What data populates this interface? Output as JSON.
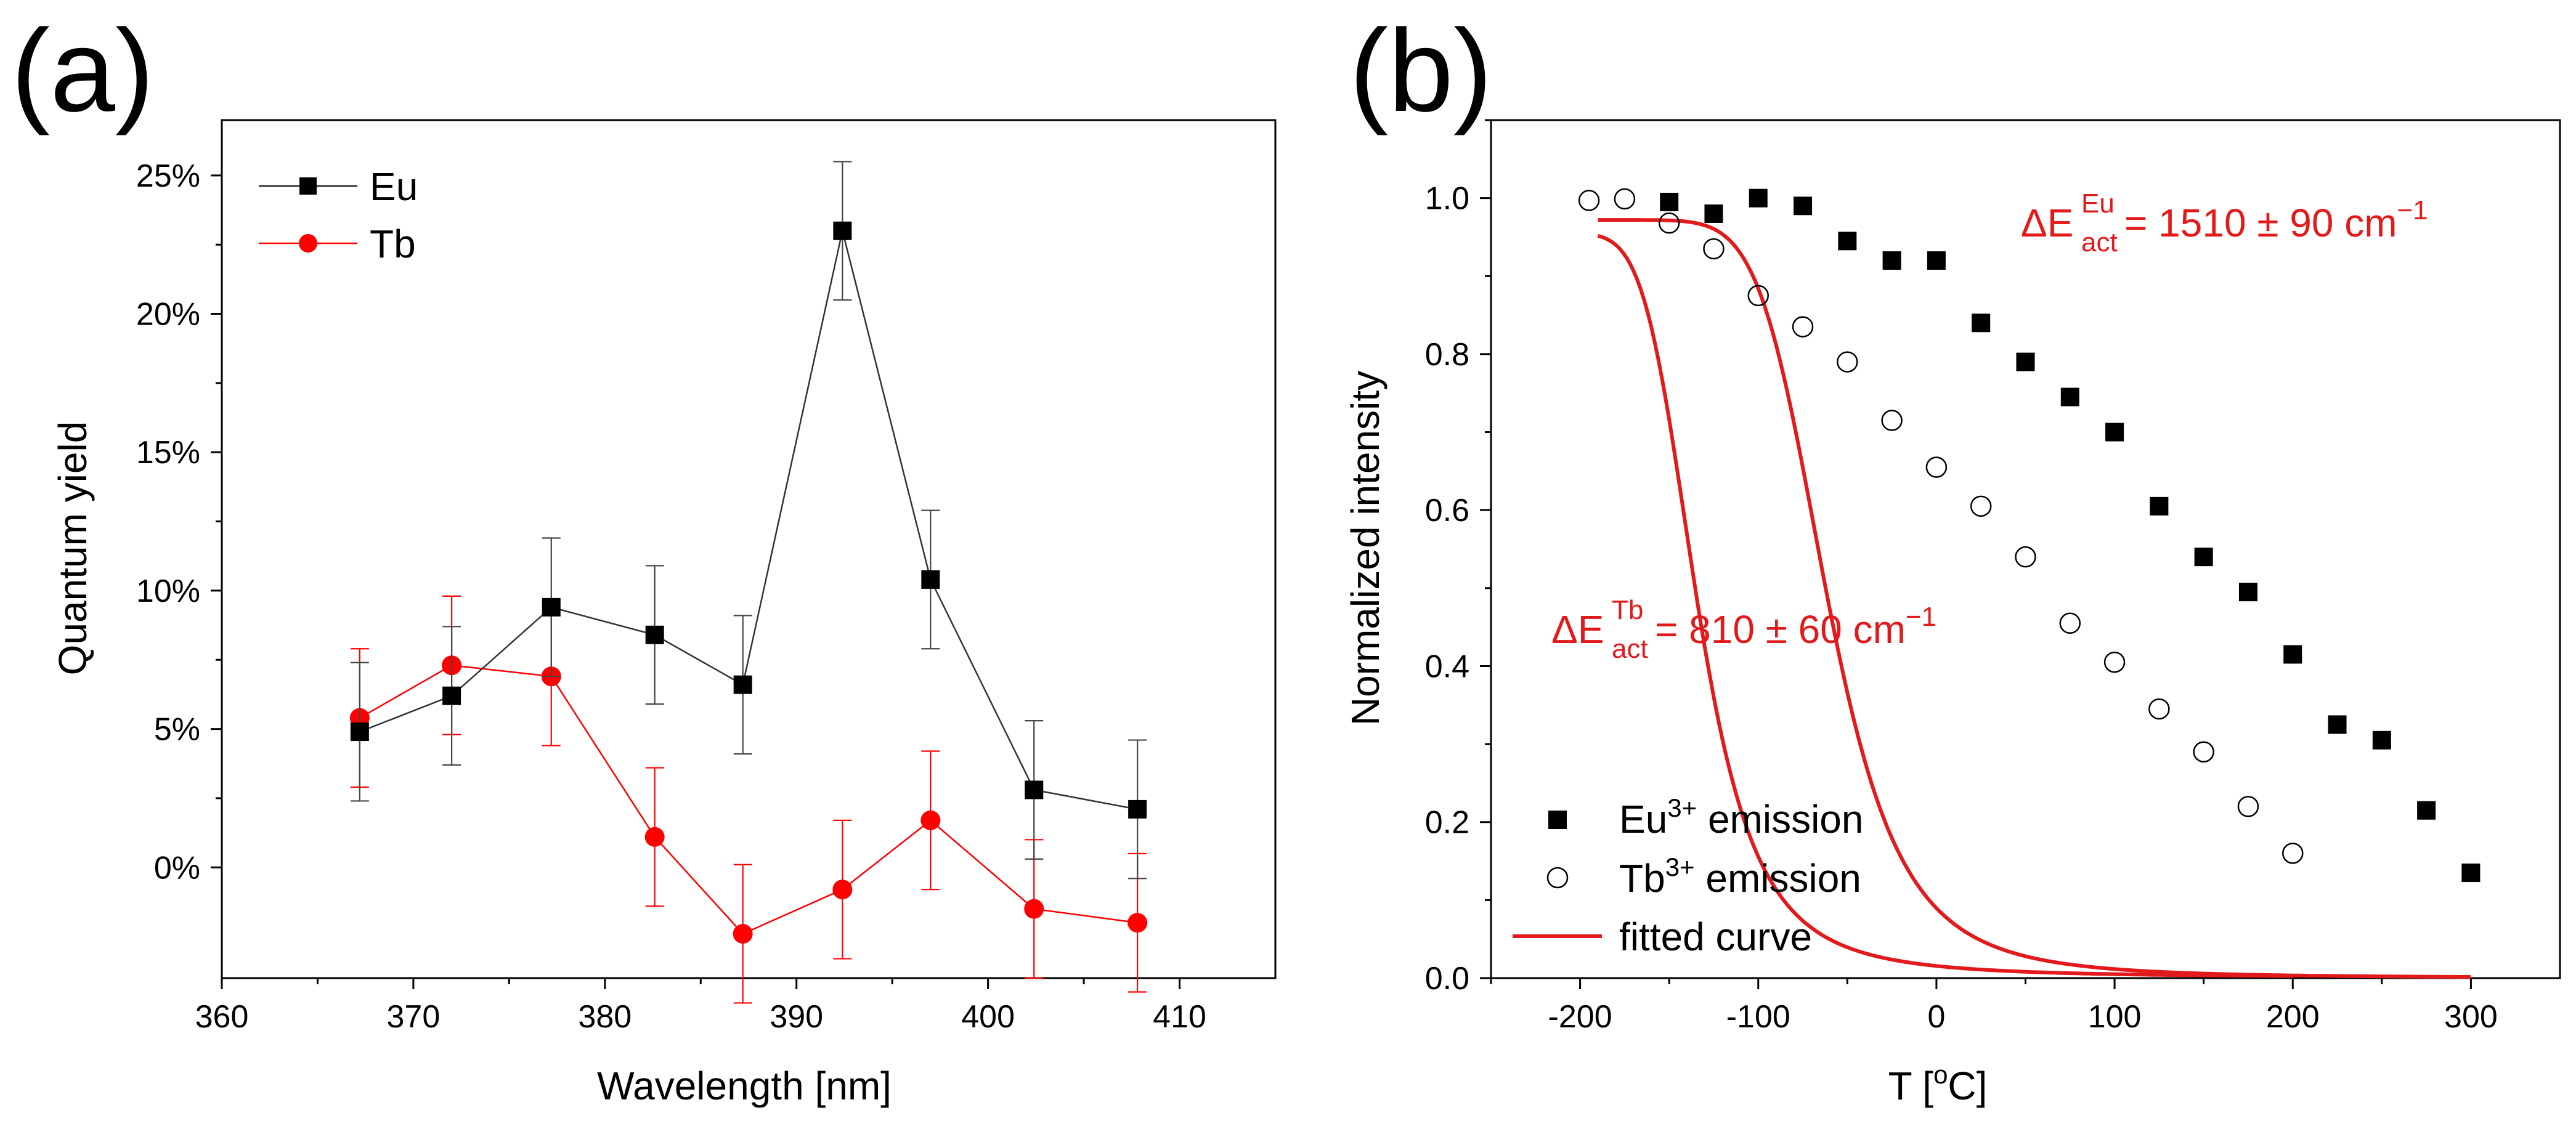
{
  "panel_labels": [
    "(a)",
    "(b)"
  ],
  "chart_data": [
    {
      "type": "line",
      "panel": "(a)",
      "xlabel": "Wavelength [nm]",
      "ylabel": "Quantum yield",
      "xlim": [
        360,
        415
      ],
      "ylim": [
        -4,
        27
      ],
      "xticks": [
        360,
        370,
        380,
        390,
        400,
        410
      ],
      "yticks": [
        0,
        5,
        10,
        15,
        20,
        25
      ],
      "ytick_suffix": "%",
      "legend_position": "top-left",
      "series": [
        {
          "name": "Eu",
          "marker": "square",
          "color": "#000000",
          "x": [
            367.2,
            372.0,
            377.2,
            382.6,
            387.2,
            392.4,
            397.0,
            402.4,
            407.8
          ],
          "y": [
            4.9,
            6.2,
            9.4,
            8.4,
            6.6,
            23.0,
            10.4,
            2.8,
            2.1
          ],
          "err": [
            2.5,
            2.5,
            2.5,
            2.5,
            2.5,
            2.5,
            2.5,
            2.5,
            2.5
          ]
        },
        {
          "name": "Tb",
          "marker": "circle",
          "color": "#ff0000",
          "x": [
            367.2,
            372.0,
            377.2,
            382.6,
            387.2,
            392.4,
            397.0,
            402.4,
            407.8
          ],
          "y": [
            5.4,
            7.3,
            6.9,
            1.1,
            -2.4,
            -0.8,
            1.7,
            -1.5,
            -2.0
          ],
          "err": [
            2.5,
            2.5,
            2.5,
            2.5,
            2.5,
            2.5,
            2.5,
            2.5,
            2.5
          ]
        }
      ]
    },
    {
      "type": "scatter",
      "panel": "(b)",
      "xlabel": "T [°C]",
      "xlabel_main": "T [",
      "xlabel_sup": "o",
      "xlabel_end": "C]",
      "ylabel": "Normalized intensity",
      "xlim": [
        -250,
        350
      ],
      "ylim": [
        0.0,
        1.1
      ],
      "xticks": [
        -200,
        -100,
        0,
        100,
        200,
        300
      ],
      "yticks": [
        0.0,
        0.2,
        0.4,
        0.6,
        0.8,
        1.0
      ],
      "legend_position": "bottom-left",
      "series": [
        {
          "name": "Eu3+ emission",
          "label_main": "Eu",
          "label_sup": "3+",
          "label_end": " emission",
          "marker": "filled-square",
          "x": [
            -150,
            -125,
            -100,
            -75,
            -50,
            -25,
            0,
            25,
            50,
            75,
            100,
            125,
            150,
            175,
            200,
            225,
            250,
            275,
            300
          ],
          "y": [
            0.995,
            0.98,
            1.0,
            0.99,
            0.945,
            0.92,
            0.92,
            0.84,
            0.79,
            0.745,
            0.7,
            0.605,
            0.54,
            0.495,
            0.415,
            0.325,
            0.305,
            0.215,
            0.135
          ]
        },
        {
          "name": "Tb3+ emission",
          "label_main": "Tb",
          "label_sup": "3+",
          "label_end": " emission",
          "marker": "open-circle",
          "x": [
            -195,
            -175,
            -150,
            -125,
            -100,
            -75,
            -50,
            -25,
            0,
            25,
            50,
            75,
            100,
            125,
            150,
            175,
            200
          ],
          "y": [
            0.997,
            0.999,
            0.968,
            0.935,
            0.875,
            0.835,
            0.79,
            0.715,
            0.655,
            0.605,
            0.54,
            0.455,
            0.405,
            0.345,
            0.29,
            0.22,
            0.16
          ]
        },
        {
          "name": "fitted curve",
          "label_main": "fitted curve",
          "marker": "line",
          "color": "#e31a1c",
          "fits": [
            {
              "x_start": -190,
              "x_end": 300,
              "y0": 0.972,
              "c": 28000,
              "E_cm": 1510
            },
            {
              "x_start": -190,
              "x_end": 200,
              "y0": 0.955,
              "c": 4300,
              "E_cm": 810
            }
          ]
        }
      ],
      "annotations": [
        {
          "text": "ΔE_act^Eu = 1510 ± 90 cm⁻¹",
          "delta": "ΔE",
          "sub": "act",
          "sup": "Eu",
          "rest": " = 1510 ± 90 cm",
          "exp": "−1"
        },
        {
          "text": "ΔE_act^Tb = 810 ± 60 cm⁻¹",
          "delta": "ΔE",
          "sub": "act",
          "sup": "Tb",
          "rest": " = 810 ± 60 cm",
          "exp": "−1"
        }
      ]
    }
  ]
}
